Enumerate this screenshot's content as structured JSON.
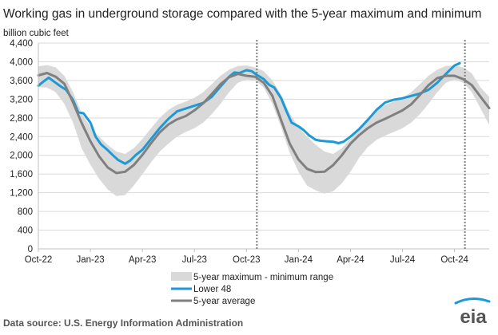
{
  "chart_data": {
    "type": "area",
    "title": "Working gas in underground storage compared with the 5-year maximum and minimum",
    "ylabel": "billion cubic feet",
    "xlabel": "",
    "ylim": [
      0,
      4400
    ],
    "yticks": [
      0,
      400,
      800,
      1200,
      1600,
      2000,
      2400,
      2800,
      3200,
      3600,
      4000,
      4400
    ],
    "ytick_labels": [
      "0",
      "400",
      "800",
      "1,200",
      "1,600",
      "2,000",
      "2,400",
      "2,800",
      "3,200",
      "3,600",
      "4,000",
      "4,400"
    ],
    "xtick_labels": [
      "Oct-22",
      "Jan-23",
      "Apr-23",
      "Jul-23",
      "Oct-23",
      "Jan-24",
      "Apr-24",
      "Jul-24",
      "Oct-24"
    ],
    "x_tick_months": [
      0,
      3,
      6,
      9,
      12,
      15,
      18,
      21,
      24
    ],
    "x_range_months": [
      0,
      26
    ],
    "grid": "horizontal",
    "legend_position": "bottom",
    "reference_lines_months": [
      12.6,
      24.6
    ],
    "source": "Data source:  U.S. Energy Information Administration",
    "logo_text": "eia",
    "colors": {
      "lower48": "#1d9ad6",
      "average": "#808080",
      "range": "#d9d9d9",
      "grid": "#d9d9d9",
      "axis": "#bfbfbf",
      "text": "#222222"
    },
    "series": [
      {
        "name": "5-year maximum - minimum range",
        "kind": "band",
        "x": [
          0,
          0.5,
          1,
          1.5,
          2,
          2.5,
          3,
          3.5,
          4,
          4.5,
          5,
          5.5,
          6,
          6.5,
          7,
          7.5,
          8,
          8.5,
          9,
          9.5,
          10,
          10.5,
          11,
          11.5,
          12,
          12.5,
          13,
          13.5,
          14,
          14.5,
          15,
          15.5,
          16,
          16.5,
          17,
          17.5,
          18,
          18.5,
          19,
          19.5,
          20,
          20.5,
          21,
          21.5,
          22,
          22.5,
          23,
          23.5,
          24,
          24.5,
          25,
          25.5,
          26
        ],
        "upper": [
          3900,
          3930,
          3880,
          3700,
          3350,
          2900,
          2600,
          2400,
          2220,
          2080,
          2030,
          2150,
          2350,
          2580,
          2800,
          2970,
          3080,
          3150,
          3230,
          3350,
          3520,
          3700,
          3830,
          3910,
          3920,
          3880,
          3800,
          3600,
          3300,
          2900,
          2600,
          2400,
          2220,
          2080,
          2030,
          2150,
          2350,
          2580,
          2800,
          2970,
          3080,
          3150,
          3230,
          3350,
          3520,
          3700,
          3830,
          3910,
          3920,
          3880,
          3750,
          3450,
          3250
        ],
        "lower": [
          3460,
          3450,
          3350,
          3100,
          2700,
          2150,
          1800,
          1500,
          1270,
          1130,
          1150,
          1350,
          1600,
          1850,
          2080,
          2250,
          2400,
          2500,
          2580,
          2700,
          2880,
          3100,
          3350,
          3550,
          3620,
          3600,
          3450,
          3100,
          2600,
          2050,
          1650,
          1350,
          1250,
          1180,
          1230,
          1400,
          1650,
          1950,
          2180,
          2330,
          2420,
          2500,
          2580,
          2700,
          2880,
          3100,
          3350,
          3550,
          3620,
          3550,
          3350,
          3000,
          2650
        ]
      },
      {
        "name": "Lower 48",
        "kind": "line",
        "x": [
          0,
          0.3,
          0.6,
          1,
          1.3,
          1.6,
          2,
          2.3,
          2.6,
          3,
          3.3,
          3.6,
          4,
          4.3,
          4.6,
          5,
          5.3,
          5.6,
          6,
          6.5,
          7,
          7.5,
          8,
          8.5,
          9,
          9.5,
          10,
          10.5,
          11,
          11.3,
          11.6,
          12,
          12.3,
          12.6,
          13,
          13.3,
          13.6,
          14,
          14.3,
          14.6,
          15,
          15.3,
          15.6,
          16,
          16.3,
          16.6,
          17,
          17.3,
          17.6,
          18,
          18.5,
          19,
          19.5,
          20,
          20.5,
          21,
          21.5,
          22,
          22.5,
          23,
          23.5,
          24,
          24.3
        ],
        "y": [
          3490,
          3580,
          3660,
          3550,
          3470,
          3400,
          3180,
          2920,
          2900,
          2700,
          2400,
          2240,
          2110,
          2000,
          1900,
          1820,
          1890,
          2000,
          2120,
          2350,
          2580,
          2780,
          2940,
          3000,
          3060,
          3120,
          3250,
          3470,
          3680,
          3770,
          3760,
          3820,
          3800,
          3720,
          3630,
          3510,
          3450,
          3220,
          2950,
          2700,
          2620,
          2540,
          2430,
          2330,
          2310,
          2300,
          2290,
          2260,
          2290,
          2400,
          2560,
          2760,
          2970,
          3130,
          3190,
          3220,
          3270,
          3320,
          3400,
          3550,
          3740,
          3920,
          3970
        ]
      },
      {
        "name": "5-year average",
        "kind": "line",
        "x": [
          0,
          0.5,
          1,
          1.5,
          2,
          2.5,
          3,
          3.5,
          4,
          4.5,
          5,
          5.5,
          6,
          6.5,
          7,
          7.5,
          8,
          8.5,
          9,
          9.5,
          10,
          10.5,
          11,
          11.5,
          12,
          12.5,
          13,
          13.5,
          14,
          14.5,
          15,
          15.5,
          16,
          16.5,
          17,
          17.5,
          18,
          18.5,
          19,
          19.5,
          20,
          20.5,
          21,
          21.5,
          22,
          22.5,
          23,
          23.5,
          24,
          24.5,
          25,
          25.5,
          26
        ],
        "y": [
          3710,
          3760,
          3680,
          3530,
          3130,
          2690,
          2300,
          1980,
          1740,
          1620,
          1650,
          1790,
          2010,
          2260,
          2490,
          2660,
          2770,
          2840,
          2960,
          3110,
          3310,
          3520,
          3670,
          3740,
          3700,
          3680,
          3550,
          3270,
          2750,
          2250,
          1910,
          1710,
          1640,
          1650,
          1790,
          2000,
          2250,
          2430,
          2580,
          2700,
          2780,
          2870,
          2960,
          3090,
          3290,
          3500,
          3650,
          3700,
          3700,
          3630,
          3500,
          3250,
          3010
        ]
      }
    ]
  }
}
